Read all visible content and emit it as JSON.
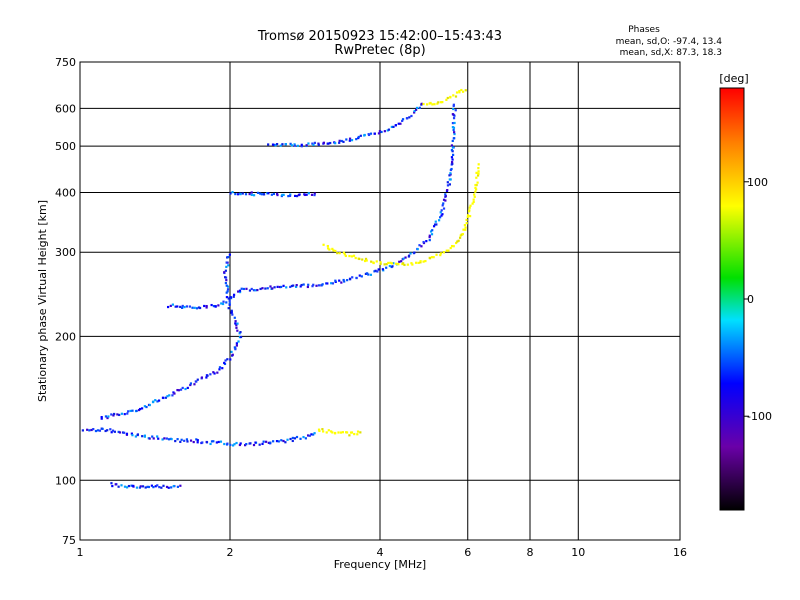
{
  "chart_data": {
    "type": "scatter",
    "title": "Tromsø 20150923 15:42:00–15:43:43",
    "subtitle": "RwPretec (8p)",
    "xlabel": "Frequency [MHz]",
    "ylabel": "Stationary phase Virtual Height [km]",
    "x_scale": "log",
    "y_scale": "log",
    "xlim": [
      1,
      16
    ],
    "ylim": [
      75,
      750
    ],
    "x_ticks": [
      1,
      2,
      4,
      6,
      8,
      10,
      16
    ],
    "x_tick_labels": [
      "1",
      "2",
      "4",
      "6",
      "8",
      "10",
      "16"
    ],
    "y_ticks": [
      75,
      100,
      200,
      300,
      400,
      500,
      600,
      750
    ],
    "y_tick_labels": [
      "75",
      "100",
      "200",
      "300",
      "400",
      "500",
      "600",
      "750"
    ],
    "grid": true,
    "legend": {
      "title": "Phases",
      "lines": [
        "mean, sd,O: -97.4, 13.4",
        "mean, sd,X: 87.3, 18.3"
      ],
      "placement": "top-right"
    },
    "colorbar": {
      "label": "[deg]",
      "range": [
        -180,
        180
      ],
      "ticks": [
        100,
        0,
        -100
      ],
      "tick_labels": [
        "100",
        "0",
        "-100"
      ]
    },
    "series": [
      {
        "mode": "O",
        "phase_mean": -97.4,
        "phase_sd": 13.4,
        "traces": [
          [
            [
              1.02,
              128
            ],
            [
              1.05,
              127
            ],
            [
              1.1,
              128
            ],
            [
              1.2,
              126
            ],
            [
              1.3,
              124
            ],
            [
              1.4,
              123
            ],
            [
              1.5,
              122
            ],
            [
              1.6,
              121
            ],
            [
              1.7,
              121
            ],
            [
              1.8,
              120
            ],
            [
              1.9,
              120
            ],
            [
              2.0,
              119
            ],
            [
              2.2,
              119
            ],
            [
              2.4,
              120
            ],
            [
              2.6,
              121
            ],
            [
              2.8,
              123
            ],
            [
              3.0,
              125
            ]
          ],
          [
            [
              1.15,
              98
            ],
            [
              1.25,
              97
            ],
            [
              1.35,
              97
            ],
            [
              1.45,
              97
            ],
            [
              1.55,
              97
            ],
            [
              1.6,
              97
            ]
          ],
          [
            [
              1.5,
              232
            ],
            [
              1.7,
              230
            ],
            [
              1.9,
              232
            ],
            [
              2.0,
              240
            ],
            [
              2.1,
              250
            ],
            [
              2.3,
              252
            ],
            [
              2.6,
              254
            ],
            [
              3.0,
              256
            ],
            [
              3.4,
              262
            ],
            [
              3.8,
              270
            ],
            [
              4.2,
              280
            ],
            [
              4.6,
              295
            ],
            [
              5.0,
              320
            ],
            [
              5.3,
              360
            ],
            [
              5.5,
              420
            ],
            [
              5.6,
              500
            ],
            [
              5.65,
              620
            ]
          ],
          [
            [
              2.4,
              505
            ],
            [
              2.6,
              503
            ],
            [
              2.8,
              503
            ],
            [
              3.0,
              505
            ],
            [
              3.3,
              510
            ],
            [
              3.6,
              520
            ],
            [
              4.0,
              535
            ],
            [
              4.4,
              560
            ],
            [
              4.7,
              590
            ],
            [
              4.9,
              620
            ]
          ],
          [
            [
              2.0,
              400
            ],
            [
              2.2,
              398
            ],
            [
              2.4,
              396
            ],
            [
              2.6,
              395
            ],
            [
              2.8,
              396
            ],
            [
              3.0,
              398
            ]
          ],
          [
            [
              1.1,
              135
            ],
            [
              1.3,
              140
            ],
            [
              1.5,
              150
            ],
            [
              1.7,
              160
            ],
            [
              1.9,
              170
            ],
            [
              2.0,
              180
            ],
            [
              2.1,
              200
            ],
            [
              2.0,
              230
            ],
            [
              1.95,
              270
            ],
            [
              2.0,
              300
            ]
          ]
        ]
      },
      {
        "mode": "X",
        "phase_mean": 87.3,
        "phase_sd": 18.3,
        "traces": [
          [
            [
              3.1,
              310
            ],
            [
              3.3,
              300
            ],
            [
              3.6,
              292
            ],
            [
              3.9,
              286
            ],
            [
              4.2,
              284
            ],
            [
              4.6,
              284
            ],
            [
              5.0,
              290
            ],
            [
              5.4,
              300
            ],
            [
              5.8,
              320
            ],
            [
              6.0,
              350
            ],
            [
              6.2,
              400
            ],
            [
              6.3,
              460
            ]
          ],
          [
            [
              3.0,
              128
            ],
            [
              3.2,
              126
            ],
            [
              3.5,
              125
            ],
            [
              3.7,
              126
            ]
          ],
          [
            [
              4.9,
              610
            ],
            [
              5.2,
              615
            ],
            [
              5.5,
              630
            ],
            [
              5.8,
              650
            ],
            [
              6.0,
              660
            ]
          ]
        ]
      }
    ]
  }
}
